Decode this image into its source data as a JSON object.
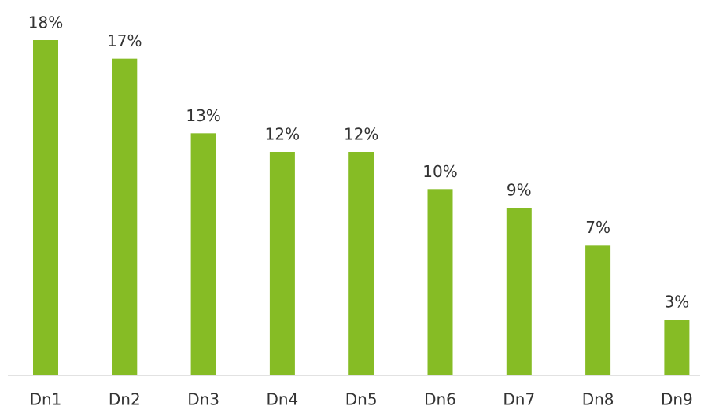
{
  "chart_data": {
    "type": "bar",
    "categories": [
      "Dn1",
      "Dn2",
      "Dn3",
      "Dn4",
      "Dn5",
      "Dn6",
      "Dn7",
      "Dn8",
      "Dn9"
    ],
    "values": [
      18,
      17,
      13,
      12,
      12,
      10,
      9,
      7,
      3
    ],
    "value_labels": [
      "18%",
      "17%",
      "13%",
      "12%",
      "12%",
      "10%",
      "9%",
      "7%",
      "3%"
    ],
    "color": "#86bc25"
  }
}
